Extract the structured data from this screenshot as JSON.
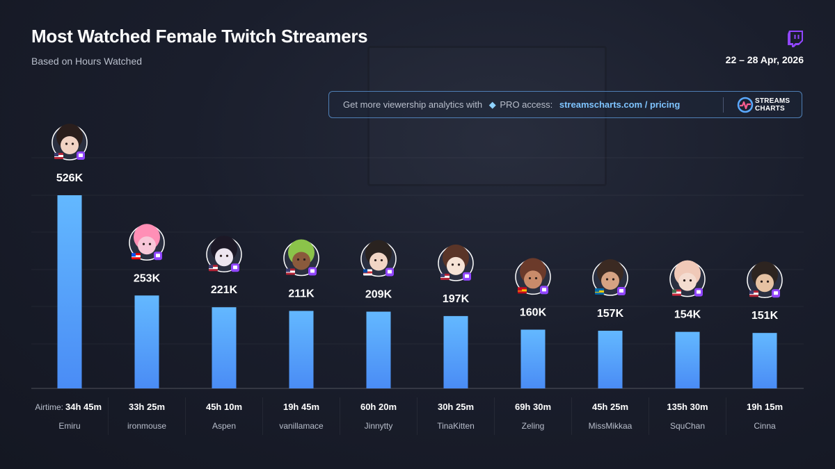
{
  "header": {
    "title": "Most Watched Female Twitch Streamers",
    "subtitle": "Based on Hours Watched",
    "date": "22 – 28 Apr, 2026"
  },
  "promo": {
    "text": "Get more viewership analytics with",
    "pro": "PRO access:",
    "link": "streamscharts.com / pricing",
    "logo_line1": "STREAMS",
    "logo_line2": "CHARTS"
  },
  "colors": {
    "bar_top": "#63b8ff",
    "bar_bottom": "#4a8cf5",
    "twitch": "#9146ff",
    "accent_link": "#7fc4ff"
  },
  "chart_data": {
    "type": "bar",
    "title": "Most Watched Female Twitch Streamers",
    "subtitle": "Based on Hours Watched",
    "categories": [
      "Emiru",
      "ironmouse",
      "Aspen",
      "vanillamace",
      "Jinnytty",
      "TinaKitten",
      "Zeling",
      "MissMikkaa",
      "SquChan",
      "Cinna"
    ],
    "values": [
      526000,
      253000,
      221000,
      211000,
      209000,
      197000,
      160000,
      157000,
      154000,
      151000
    ],
    "value_labels": [
      "526K",
      "253K",
      "221K",
      "211K",
      "209K",
      "197K",
      "160K",
      "157K",
      "154K",
      "151K"
    ],
    "airtime_label": "Airtime:",
    "airtime": [
      "34h 45m",
      "33h 25m",
      "45h 10m",
      "19h 45m",
      "60h 20m",
      "30h 25m",
      "69h 30m",
      "45h 25m",
      "135h 30m",
      "19h 15m"
    ],
    "countries": [
      "us",
      "pr",
      "us",
      "us",
      "kr",
      "us",
      "es",
      "se",
      "hu",
      "us"
    ],
    "platform_icon": "twitch-icon",
    "ylim": [
      0,
      526000
    ],
    "grid": true,
    "legend": "none"
  }
}
